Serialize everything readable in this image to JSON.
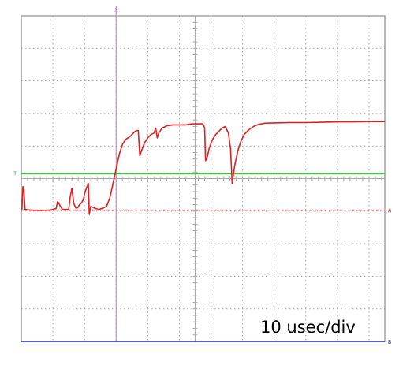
{
  "chart_data": {
    "type": "line",
    "title": "",
    "xlabel": "",
    "ylabel": "",
    "timebase_label": "10 usec/div",
    "x_unit": "usec",
    "x_per_div": 10,
    "x_range_div": [
      0,
      11.5
    ],
    "y_range_div": [
      0,
      10
    ],
    "grid": true,
    "grid_divisions": {
      "x": 11.5,
      "y": 10
    },
    "markers": {
      "cursor_x": {
        "label": "X",
        "position_div": 3.0,
        "color": "#d070d0"
      },
      "trigger_level": {
        "label": "T",
        "position_div": 5.15,
        "color": "#33cc33"
      },
      "channel_a_ref": {
        "label": "A",
        "position_div": 4.03,
        "color": "#e02020"
      },
      "channel_b_ref": {
        "label": "B",
        "position_div": 0.0,
        "color": "#2233aa"
      }
    },
    "series": [
      {
        "color": "#e02020",
        "points": [
          [
            0.0,
            4.1
          ],
          [
            0.02,
            4.05
          ],
          [
            0.05,
            4.75
          ],
          [
            0.08,
            4.65
          ],
          [
            0.12,
            4.05
          ],
          [
            0.3,
            4.03
          ],
          [
            0.6,
            4.02
          ],
          [
            0.9,
            4.03
          ],
          [
            1.1,
            4.08
          ],
          [
            1.15,
            4.3
          ],
          [
            1.22,
            4.18
          ],
          [
            1.3,
            4.05
          ],
          [
            1.5,
            4.05
          ],
          [
            1.55,
            4.45
          ],
          [
            1.6,
            4.7
          ],
          [
            1.66,
            4.25
          ],
          [
            1.72,
            4.1
          ],
          [
            1.78,
            4.1
          ],
          [
            1.84,
            4.2
          ],
          [
            1.9,
            4.25
          ],
          [
            1.96,
            4.35
          ],
          [
            2.02,
            4.6
          ],
          [
            2.08,
            4.75
          ],
          [
            2.12,
            4.85
          ],
          [
            2.15,
            3.9
          ],
          [
            2.2,
            4.15
          ],
          [
            2.3,
            4.1
          ],
          [
            2.45,
            4.05
          ],
          [
            2.6,
            4.1
          ],
          [
            2.7,
            4.15
          ],
          [
            2.8,
            4.4
          ],
          [
            2.9,
            4.85
          ],
          [
            3.0,
            5.3
          ],
          [
            3.1,
            5.75
          ],
          [
            3.2,
            6.05
          ],
          [
            3.3,
            6.2
          ],
          [
            3.45,
            6.3
          ],
          [
            3.6,
            6.45
          ],
          [
            3.7,
            6.48
          ],
          [
            3.75,
            5.7
          ],
          [
            3.8,
            5.85
          ],
          [
            3.9,
            6.1
          ],
          [
            4.0,
            6.25
          ],
          [
            4.1,
            6.35
          ],
          [
            4.2,
            6.4
          ],
          [
            4.25,
            6.55
          ],
          [
            4.3,
            6.25
          ],
          [
            4.35,
            6.4
          ],
          [
            4.45,
            6.55
          ],
          [
            4.6,
            6.62
          ],
          [
            4.8,
            6.65
          ],
          [
            5.0,
            6.65
          ],
          [
            5.2,
            6.65
          ],
          [
            5.4,
            6.68
          ],
          [
            5.6,
            6.68
          ],
          [
            5.75,
            6.68
          ],
          [
            5.8,
            6.55
          ],
          [
            5.83,
            5.55
          ],
          [
            5.88,
            5.65
          ],
          [
            5.95,
            5.95
          ],
          [
            6.05,
            6.2
          ],
          [
            6.15,
            6.35
          ],
          [
            6.25,
            6.45
          ],
          [
            6.35,
            6.55
          ],
          [
            6.45,
            6.6
          ],
          [
            6.55,
            6.4
          ],
          [
            6.62,
            5.9
          ],
          [
            6.67,
            4.85
          ],
          [
            6.75,
            5.4
          ],
          [
            6.85,
            5.85
          ],
          [
            6.95,
            6.15
          ],
          [
            7.05,
            6.35
          ],
          [
            7.2,
            6.5
          ],
          [
            7.35,
            6.6
          ],
          [
            7.5,
            6.66
          ],
          [
            7.7,
            6.7
          ],
          [
            8.0,
            6.71
          ],
          [
            8.5,
            6.72
          ],
          [
            9.0,
            6.72
          ],
          [
            9.5,
            6.73
          ],
          [
            10.0,
            6.74
          ],
          [
            10.5,
            6.74
          ],
          [
            11.0,
            6.75
          ],
          [
            11.5,
            6.75
          ]
        ]
      }
    ]
  },
  "colors": {
    "background": "#ffffff",
    "grid": "#a8a8a8",
    "frame": "#8c8c8c",
    "trace": "#e02020",
    "trigger": "#33cc33",
    "cursor": "#d070d0",
    "channel_b": "#2233aa"
  }
}
